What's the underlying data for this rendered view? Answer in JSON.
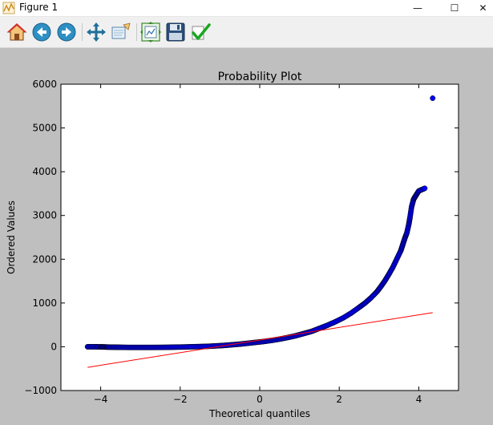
{
  "window": {
    "title": "Figure 1",
    "minimize_glyph": "—",
    "maximize_glyph": "☐",
    "close_glyph": "✕"
  },
  "toolbar": {
    "tools": [
      {
        "name": "home-icon",
        "tooltip": "Reset original view"
      },
      {
        "name": "back-icon",
        "tooltip": "Back to previous view"
      },
      {
        "name": "forward-icon",
        "tooltip": "Forward to next view"
      },
      {
        "name": "pan-icon",
        "tooltip": "Pan axes"
      },
      {
        "name": "zoom-icon",
        "tooltip": "Zoom to rectangle"
      },
      {
        "name": "subplots-icon",
        "tooltip": "Configure subplots"
      },
      {
        "name": "save-icon",
        "tooltip": "Save the figure"
      },
      {
        "name": "edit-check-icon",
        "tooltip": "Edit curves line and axes parameters"
      }
    ]
  },
  "chart_data": {
    "type": "scatter",
    "title": "Probability Plot",
    "xlabel": "Theoretical quantiles",
    "ylabel": "Ordered Values",
    "xlim": [
      -5,
      5
    ],
    "ylim": [
      -1000,
      6000
    ],
    "xticks": [
      -4,
      -2,
      0,
      2,
      4
    ],
    "xtick_labels": [
      "−4",
      "−2",
      "0",
      "2",
      "4"
    ],
    "yticks": [
      -1000,
      0,
      1000,
      2000,
      3000,
      4000,
      5000,
      6000
    ],
    "ytick_labels": [
      "−1000",
      "0",
      "1000",
      "2000",
      "3000",
      "4000",
      "5000",
      "6000"
    ],
    "grid": false,
    "marker_color": "#0000ff",
    "marker_edge_color": "#000000",
    "fit_line_color": "#ff0000",
    "series": [
      {
        "kind": "markers",
        "x": [
          -4.33,
          -4.15,
          -4.0,
          -3.9,
          -3.8,
          -3.65,
          -3.5,
          -3.3,
          -3.1,
          -2.9,
          -2.7,
          -2.5,
          -2.3,
          -2.1,
          -1.9,
          -1.7,
          -1.5,
          -1.3,
          -1.1,
          -0.9,
          -0.7,
          -0.5,
          -0.3,
          -0.1,
          0.1,
          0.3,
          0.5,
          0.7,
          0.9,
          1.1,
          1.3,
          1.5,
          1.7,
          1.9,
          2.1,
          2.3,
          2.5,
          2.65,
          2.8,
          2.95,
          3.05,
          3.15,
          3.25,
          3.35,
          3.45,
          3.55,
          3.6,
          3.65,
          3.7,
          3.75,
          3.78,
          3.82,
          3.87,
          3.93,
          4.0,
          4.15,
          4.35
        ],
        "y": [
          0,
          0,
          -3,
          -5,
          -8,
          -10,
          -12,
          -15,
          -15,
          -15,
          -15,
          -14,
          -12,
          -8,
          -5,
          0,
          5,
          10,
          20,
          30,
          45,
          60,
          80,
          100,
          120,
          145,
          175,
          210,
          250,
          300,
          350,
          420,
          490,
          570,
          660,
          770,
          900,
          1000,
          1120,
          1260,
          1380,
          1510,
          1660,
          1820,
          2010,
          2200,
          2340,
          2480,
          2600,
          2800,
          2960,
          3200,
          3370,
          3460,
          3560,
          3620,
          5680
        ]
      },
      {
        "kind": "fit_line",
        "x": [
          -4.33,
          4.35
        ],
        "y": [
          -470,
          780
        ]
      }
    ]
  }
}
